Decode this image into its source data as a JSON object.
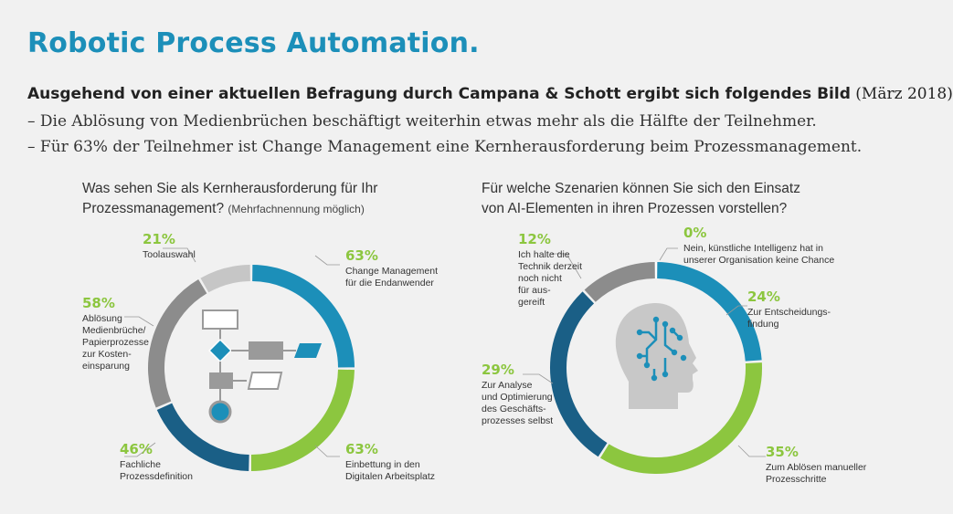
{
  "header": {
    "title": "Robotic Process Automation.",
    "lead_bold": "Ausgehend von einer aktuellen Befragung durch Campana & Schott ergibt sich folgendes Bild",
    "lead_date": "(März 2018)",
    "bullets": [
      "– Die Ablösung von Medienbrüchen beschäftigt weiterhin etwas mehr als die Hälfte der Teilnehmer.",
      "– Für 63% der Teilnehmer ist Change Management eine Kernherausforderung beim Prozessmanagement."
    ]
  },
  "left": {
    "question_line1": "Was sehen Sie als Kernherausforderung für Ihr",
    "question_line2": "Prozessmanagement?",
    "note": "(Mehrfachnennung möglich)",
    "labels": [
      {
        "pct": "63%",
        "text": "Change Management\nfür die Endanwender"
      },
      {
        "pct": "63%",
        "text": "Einbettung in den\nDigitalen Arbeitsplatz"
      },
      {
        "pct": "46%",
        "text": "Fachliche\nProzessdefinition"
      },
      {
        "pct": "58%",
        "text": "Ablösung\nMedienbrüche/\nPapierprozesse\nzur Kosten-\neinsparung"
      },
      {
        "pct": "21%",
        "text": "Toolauswahl"
      }
    ]
  },
  "right": {
    "question_line1": "Für welche Szenarien können Sie sich den Einsatz",
    "question_line2": "von AI-Elementen in ihren Prozessen vorstellen?",
    "labels": [
      {
        "pct": "0%",
        "text": "Nein, künstliche Intelligenz hat in\nunserer Organisation keine Chance"
      },
      {
        "pct": "24%",
        "text": "Zur Entscheidungs-\nfindung"
      },
      {
        "pct": "35%",
        "text": "Zum Ablösen manueller\nProzesschritte"
      },
      {
        "pct": "29%",
        "text": "Zur Analyse\nund Optimierung\ndes Geschäfts-\nprozesses selbst"
      },
      {
        "pct": "12%",
        "text": "Ich halte die\nTechnik derzeit\nnoch nicht\nfür aus-\ngereift"
      }
    ]
  },
  "colors": {
    "blue": "#1c8fb9",
    "green": "#8cc63f",
    "darkblue": "#1a5f86",
    "gray": "#8c8c8c",
    "lightgray": "#c6c6c6"
  },
  "chart_data": [
    {
      "type": "pie",
      "title": "Was sehen Sie als Kernherausforderung für Ihr Prozessmanagement?",
      "categories": [
        "Change Management für die Endanwender",
        "Einbettung in den Digitalen Arbeitsplatz",
        "Fachliche Prozessdefinition",
        "Ablösung Medienbrüche/Papierprozesse zur Kosteneinsparung",
        "Toolauswahl"
      ],
      "values": [
        63,
        63,
        46,
        58,
        21
      ],
      "colors": [
        "#1c8fb9",
        "#8cc63f",
        "#1a5f86",
        "#8c8c8c",
        "#c6c6c6"
      ]
    },
    {
      "type": "pie",
      "title": "Für welche Szenarien können Sie sich den Einsatz von AI-Elementen in ihren Prozessen vorstellen?",
      "categories": [
        "Nein, künstliche Intelligenz hat in unserer Organisation keine Chance",
        "Zur Entscheidungsfindung",
        "Zum Ablösen manueller Prozesschritte",
        "Zur Analyse und Optimierung des Geschäftsprozesses selbst",
        "Ich halte die Technik derzeit noch nicht für ausgereift"
      ],
      "values": [
        0,
        24,
        35,
        29,
        12
      ],
      "colors": [
        "#1c8fb9",
        "#1c8fb9",
        "#8cc63f",
        "#1a5f86",
        "#8c8c8c"
      ]
    }
  ]
}
